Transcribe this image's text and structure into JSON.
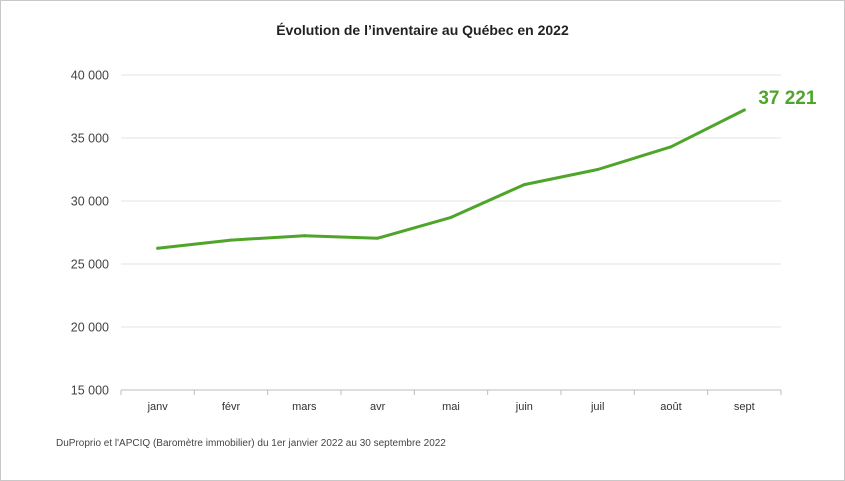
{
  "chart_data": {
    "type": "line",
    "title": "Évolution de l’inventaire au Québec en 2022",
    "source": "DuProprio et l'APCIQ (Baromètre immobilier) du 1er janvier 2022 au 30 septembre 2022",
    "categories": [
      "janv",
      "févr",
      "mars",
      "avr",
      "mai",
      "juin",
      "juil",
      "août",
      "sept"
    ],
    "series": [
      {
        "values": [
          26250,
          26900,
          27250,
          27050,
          28700,
          31300,
          32500,
          34300,
          37221
        ],
        "color": "#4fa52a"
      }
    ],
    "last_value_label": "37 221",
    "ylim": [
      15000,
      40000
    ],
    "y_ticks": [
      15000,
      20000,
      25000,
      30000,
      35000,
      40000
    ],
    "y_tick_labels": [
      "15 000",
      "20 000",
      "25 000",
      "30 000",
      "35 000",
      "40 000"
    ],
    "grid": true,
    "legend": "none"
  }
}
